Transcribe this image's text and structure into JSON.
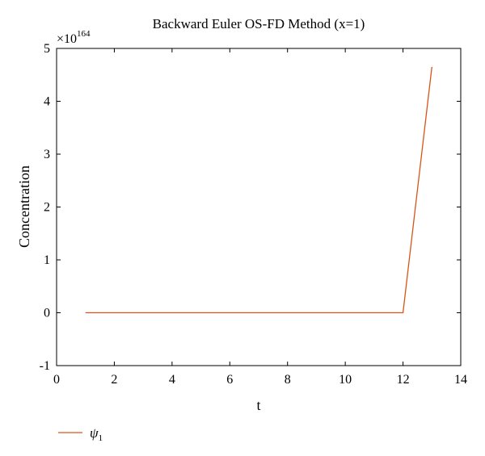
{
  "chart_data": {
    "type": "line",
    "title": "Backward Euler OS-FD Method (x=1)",
    "xlabel": "t",
    "ylabel": "Concentration",
    "y_multiplier": {
      "base": "×10",
      "exponent": "164"
    },
    "xlim": [
      0,
      14
    ],
    "ylim": [
      -1,
      5
    ],
    "xticks": [
      0,
      2,
      4,
      6,
      8,
      10,
      12,
      14
    ],
    "yticks": [
      -1,
      0,
      1,
      2,
      3,
      4,
      5
    ],
    "grid": false,
    "legend_placement": "bottom-left",
    "series": [
      {
        "name": "ψ1",
        "name_base": "ψ",
        "name_sub": "1",
        "color": "#d95319",
        "x": [
          1,
          2,
          3,
          4,
          5,
          6,
          7,
          8,
          9,
          10,
          11,
          12,
          13
        ],
        "y": [
          0,
          0,
          0,
          0,
          0,
          0,
          0,
          0,
          0,
          0,
          0,
          0,
          4.65
        ]
      }
    ]
  }
}
